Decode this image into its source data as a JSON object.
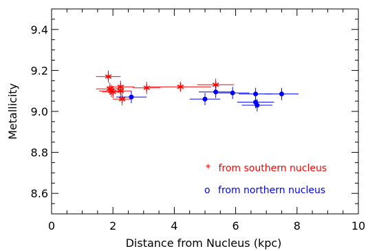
{
  "chart_data": {
    "type": "scatter",
    "title": "",
    "xlabel": "Distance from Nucleus (kpc)",
    "ylabel": "Metallicity",
    "xlim": [
      0,
      10
    ],
    "ylim": [
      8.5,
      9.5
    ],
    "x_ticks": [
      "0",
      "2",
      "4",
      "6",
      "8",
      "10"
    ],
    "y_ticks": [
      "8.6",
      "8.8",
      "9.0",
      "9.2",
      "9.4"
    ],
    "x_minor_step": 0.5,
    "y_minor_step": 0.05,
    "grid": false,
    "legend_position": "bottom-right",
    "series": [
      {
        "name": "from southern nucleus",
        "legend_marker": "*",
        "marker": "asterisk",
        "color": "#ff0000",
        "points": [
          {
            "x": 1.85,
            "y": 9.17,
            "xerr": 0.4,
            "yerr": 0.03
          },
          {
            "x": 1.9,
            "y": 9.11,
            "xerr": 0.45,
            "yerr": 0.03
          },
          {
            "x": 1.95,
            "y": 9.1,
            "xerr": 0.4,
            "yerr": 0.03
          },
          {
            "x": 2.0,
            "y": 9.095,
            "xerr": 0.35,
            "yerr": 0.03
          },
          {
            "x": 2.25,
            "y": 9.12,
            "xerr": 0.45,
            "yerr": 0.03
          },
          {
            "x": 2.25,
            "y": 9.1,
            "xerr": 0.35,
            "yerr": 0.03
          },
          {
            "x": 2.3,
            "y": 9.06,
            "xerr": 0.3,
            "yerr": 0.03
          },
          {
            "x": 3.1,
            "y": 9.115,
            "xerr": 0.45,
            "yerr": 0.03
          },
          {
            "x": 4.2,
            "y": 9.12,
            "xerr": 1.0,
            "yerr": 0.025
          },
          {
            "x": 5.35,
            "y": 9.13,
            "xerr": 0.6,
            "yerr": 0.03
          }
        ]
      },
      {
        "name": "from northern nucleus",
        "legend_marker": "o",
        "marker": "circle",
        "color": "#0000ff",
        "points": [
          {
            "x": 2.6,
            "y": 9.07,
            "xerr": 0.5,
            "yerr": 0.03
          },
          {
            "x": 5.0,
            "y": 9.06,
            "xerr": 0.5,
            "yerr": 0.03
          },
          {
            "x": 5.35,
            "y": 9.095,
            "xerr": 0.55,
            "yerr": 0.03
          },
          {
            "x": 5.9,
            "y": 9.09,
            "xerr": 0.55,
            "yerr": 0.03
          },
          {
            "x": 6.65,
            "y": 9.085,
            "xerr": 0.55,
            "yerr": 0.03
          },
          {
            "x": 6.65,
            "y": 9.045,
            "xerr": 0.6,
            "yerr": 0.03
          },
          {
            "x": 6.7,
            "y": 9.03,
            "xerr": 0.5,
            "yerr": 0.03
          },
          {
            "x": 7.5,
            "y": 9.085,
            "xerr": 0.55,
            "yerr": 0.03
          }
        ]
      }
    ]
  }
}
